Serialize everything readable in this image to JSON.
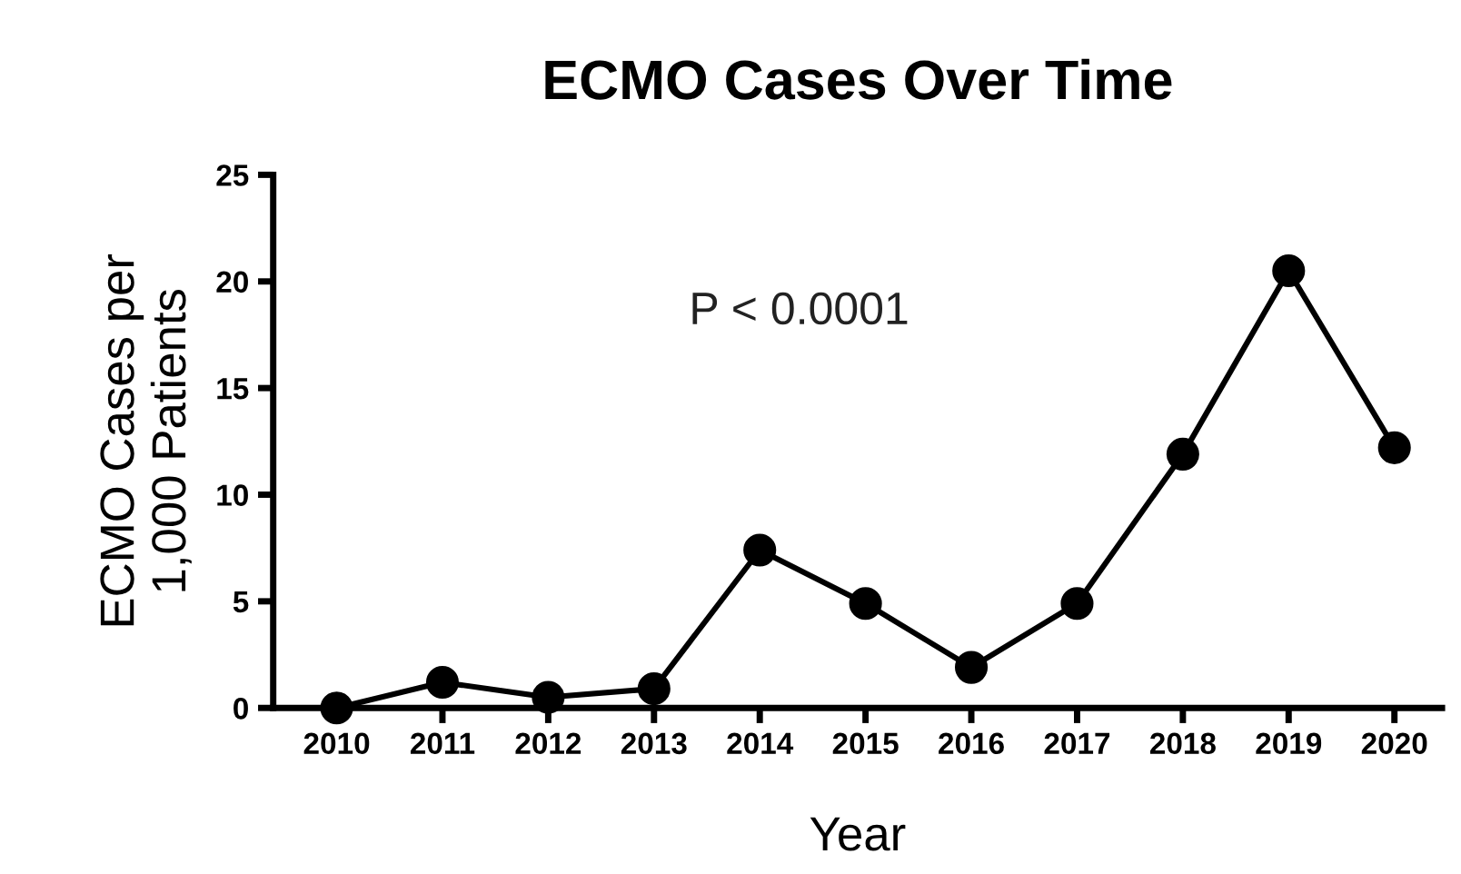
{
  "chart_data": {
    "type": "line",
    "title": "ECMO Cases Over Time",
    "xlabel": "Year",
    "ylabel": "ECMO Cases per\n1,000 Patients",
    "categories": [
      "2010",
      "2011",
      "2012",
      "2013",
      "2014",
      "2015",
      "2016",
      "2017",
      "2018",
      "2019",
      "2020"
    ],
    "series": [
      {
        "color": "#000000",
        "values": [
          0,
          1.2,
          0.5,
          0.9,
          7.4,
          4.9,
          1.9,
          4.9,
          11.9,
          20.5,
          12.2
        ]
      }
    ],
    "ylim": [
      0,
      25
    ],
    "yticks": [
      0,
      5,
      10,
      15,
      20,
      25
    ],
    "grid": false,
    "legend": false,
    "marker": "circle",
    "line_style": "solid",
    "annotations": [
      "P < 0.0001"
    ]
  }
}
